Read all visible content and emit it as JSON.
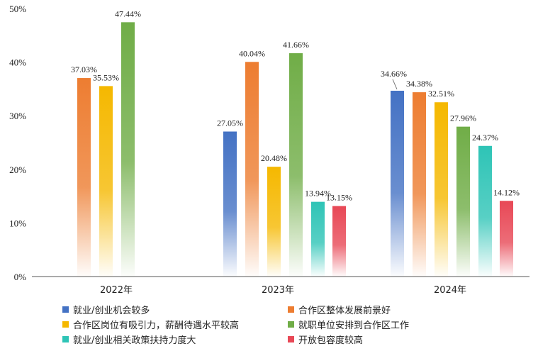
{
  "chart_data": {
    "type": "bar",
    "categories": [
      "2022年",
      "2023年",
      "2024年"
    ],
    "ylim": [
      0,
      50
    ],
    "yticks": [
      "0%",
      "10%",
      "20%",
      "30%",
      "40%",
      "50%"
    ],
    "series": [
      {
        "name": "就业/创业机会较多",
        "color": "#4472C4",
        "values": [
          null,
          27.05,
          34.66
        ],
        "labels": [
          "",
          "27.05%",
          "34.66%"
        ]
      },
      {
        "name": "合作区整体发展前景好",
        "color": "#ED7D31",
        "values": [
          37.03,
          40.04,
          34.38
        ],
        "labels": [
          "37.03%",
          "40.04%",
          "34.38%"
        ]
      },
      {
        "name": "合作区岗位有吸引力，薪酬待遇水平较高",
        "color": "#F5B800",
        "values": [
          35.53,
          20.48,
          32.51
        ],
        "labels": [
          "35.53%",
          "20.48%",
          "32.51%"
        ]
      },
      {
        "name": "就职单位安排到合作区工作",
        "color": "#70AD47",
        "values": [
          47.44,
          41.66,
          27.96
        ],
        "labels": [
          "47.44%",
          "41.66%",
          "27.96%"
        ]
      },
      {
        "name": "就业/创业相关政策扶持力度大",
        "color": "#2EC4B6",
        "values": [
          null,
          13.94,
          24.37
        ],
        "labels": [
          "",
          "13.94%",
          "24.37%"
        ]
      },
      {
        "name": "开放包容度较高",
        "color": "#E84856",
        "values": [
          null,
          13.15,
          14.12
        ],
        "labels": [
          "",
          "13.15%",
          "14.12%"
        ]
      }
    ]
  }
}
